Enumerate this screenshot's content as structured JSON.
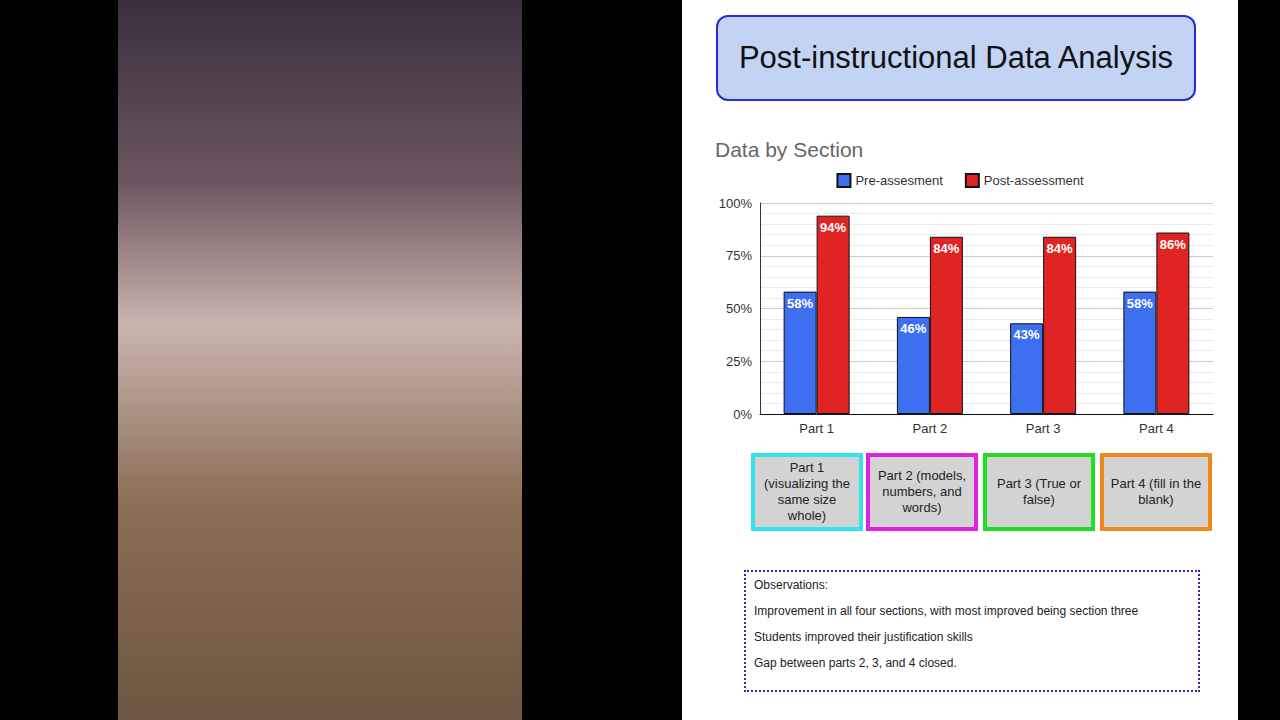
{
  "heading": "Post-instructional Data Analysis",
  "chart_data": {
    "type": "bar",
    "title": "Data by Section",
    "categories": [
      "Part 1",
      "Part 2",
      "Part 3",
      "Part 4"
    ],
    "series": [
      {
        "name": "Pre-assesment",
        "color": "#3d6ff0",
        "values": [
          58,
          46,
          43,
          58
        ],
        "value_labels": [
          "58%",
          "46%",
          "43%",
          "58%"
        ]
      },
      {
        "name": "Post-assessment",
        "color": "#e02424",
        "values": [
          94,
          84,
          84,
          86
        ],
        "value_labels": [
          "94%",
          "84%",
          "84%",
          "86%"
        ]
      }
    ],
    "ylim": [
      0,
      100
    ],
    "yticks": [
      {
        "value": 0,
        "label": "0%"
      },
      {
        "value": 25,
        "label": "25%"
      },
      {
        "value": 50,
        "label": "50%"
      },
      {
        "value": 75,
        "label": "75%"
      },
      {
        "value": 100,
        "label": "100%"
      }
    ],
    "grid": true,
    "legend": "top",
    "data_labels": true
  },
  "parts": [
    {
      "text": "Part 1 (visualizing the same size whole)",
      "color": "#33e3ee"
    },
    {
      "text": "Part 2 (models, numbers, and words)",
      "color": "#e022e0"
    },
    {
      "text": "Part 3 (True or false)",
      "color": "#22dd22"
    },
    {
      "text": "Part 4 (fill in the blank)",
      "color": "#f0881e"
    }
  ],
  "observations": [
    "Observations:",
    "Improvement in all four sections, with most improved being section three",
    "Students improved their justification skills",
    "Gap between parts 2, 3, and 4 closed."
  ]
}
